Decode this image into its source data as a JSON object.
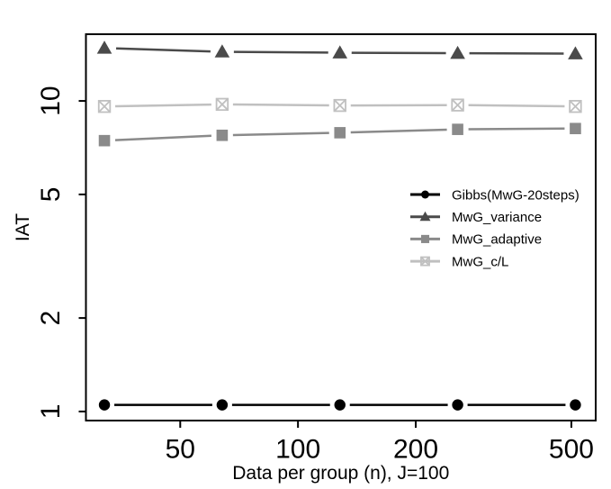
{
  "chart_data": {
    "type": "line",
    "title": "",
    "xlabel": "Data per group (n), J=100",
    "ylabel": "IAT",
    "log_x": true,
    "log_y": true,
    "grid": false,
    "xlim": [
      28.7,
      577
    ],
    "ylim": [
      0.935,
      16.4
    ],
    "x_ticks": [
      50,
      100,
      200,
      500
    ],
    "y_ticks": [
      1,
      2,
      5,
      10
    ],
    "x": [
      32,
      64,
      128,
      256,
      512
    ],
    "series": [
      {
        "name": "Gibbs(MwG-20steps)",
        "color": "#000000",
        "marker": "circle",
        "values": [
          1.05,
          1.05,
          1.05,
          1.05,
          1.05
        ]
      },
      {
        "name": "MwG_variance",
        "color": "#4a4a4a",
        "marker": "triangle",
        "values": [
          14.8,
          14.4,
          14.3,
          14.25,
          14.2
        ]
      },
      {
        "name": "MwG_adaptive",
        "color": "#8a8a8a",
        "marker": "square",
        "values": [
          7.45,
          7.75,
          7.9,
          8.1,
          8.15
        ]
      },
      {
        "name": "MwG_c/L",
        "color": "#c0c0c0",
        "marker": "square-x",
        "values": [
          9.6,
          9.75,
          9.67,
          9.7,
          9.6
        ]
      }
    ],
    "legend_position": "inside-right-middle",
    "colors": {
      "axis": "#000000",
      "background": "#ffffff"
    }
  }
}
